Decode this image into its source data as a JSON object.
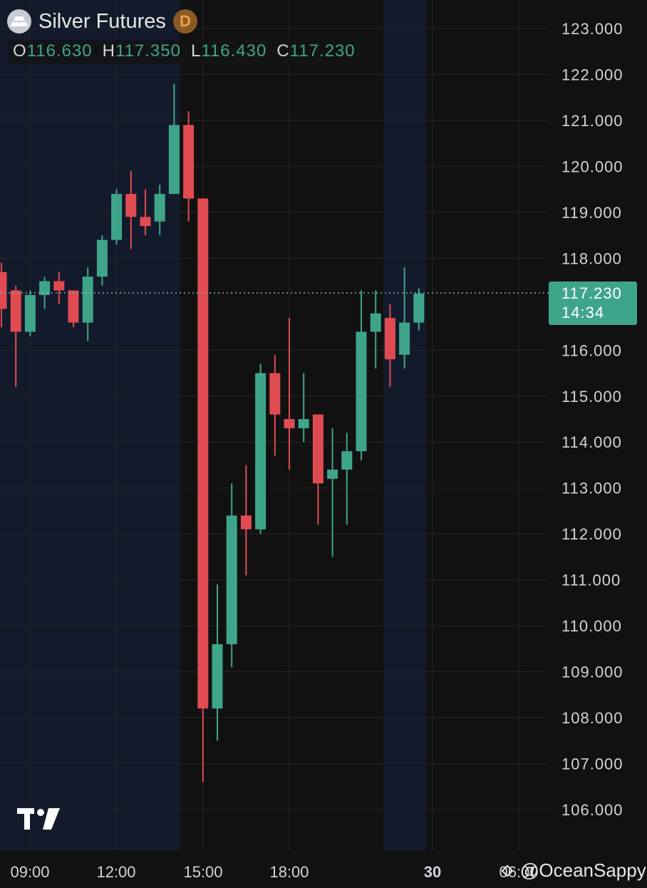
{
  "symbol": {
    "name": "Silver Futures",
    "badge": "D",
    "icon": "silver-bars-icon"
  },
  "ohlc": {
    "o_label": "O",
    "o_value": "116.630",
    "h_label": "H",
    "h_value": "117.350",
    "l_label": "L",
    "l_value": "116.430",
    "c_label": "C",
    "c_value": "117.230"
  },
  "last_price": {
    "price": "117.230",
    "countdown": "14:34"
  },
  "watermark": "@OceanSappy",
  "colors": {
    "background": "#111111",
    "session_highlight": "#131a2b",
    "up": "#3fa58a",
    "down": "#e04b52",
    "grid": "#262626",
    "last_price_tag": "#3fa58a"
  },
  "chart_data": {
    "type": "candlestick",
    "title": "Silver Futures",
    "x_tick_labels": [
      "09:00",
      "12:00",
      "15:00",
      "18:00",
      "30",
      "06:00"
    ],
    "y_tick_labels": [
      "123.000",
      "122.000",
      "121.000",
      "120.000",
      "119.000",
      "118.000",
      "116.000",
      "115.000",
      "114.000",
      "113.000",
      "112.000",
      "111.000",
      "110.000",
      "109.000",
      "108.000",
      "107.000",
      "106.000"
    ],
    "ylim": [
      105.0,
      124.0
    ],
    "grid": true,
    "last_price": 117.23,
    "candles": [
      {
        "o": 117.7,
        "h": 117.9,
        "l": 116.5,
        "c": 116.9
      },
      {
        "o": 117.3,
        "h": 117.4,
        "l": 115.2,
        "c": 116.4
      },
      {
        "o": 116.4,
        "h": 117.3,
        "l": 116.3,
        "c": 117.2
      },
      {
        "o": 117.2,
        "h": 117.6,
        "l": 116.9,
        "c": 117.5
      },
      {
        "o": 117.5,
        "h": 117.7,
        "l": 117.0,
        "c": 117.3
      },
      {
        "o": 117.3,
        "h": 117.3,
        "l": 116.5,
        "c": 116.6
      },
      {
        "o": 116.6,
        "h": 117.8,
        "l": 116.2,
        "c": 117.6
      },
      {
        "o": 117.6,
        "h": 118.5,
        "l": 117.4,
        "c": 118.4
      },
      {
        "o": 118.4,
        "h": 119.5,
        "l": 118.3,
        "c": 119.4
      },
      {
        "o": 119.4,
        "h": 119.9,
        "l": 118.2,
        "c": 118.9
      },
      {
        "o": 118.9,
        "h": 119.5,
        "l": 118.5,
        "c": 118.7
      },
      {
        "o": 118.8,
        "h": 119.6,
        "l": 118.5,
        "c": 119.4
      },
      {
        "o": 119.4,
        "h": 121.8,
        "l": 119.4,
        "c": 120.9
      },
      {
        "o": 120.9,
        "h": 121.2,
        "l": 118.8,
        "c": 119.3
      },
      {
        "o": 119.3,
        "h": 119.3,
        "l": 106.6,
        "c": 108.2
      },
      {
        "o": 108.2,
        "h": 110.9,
        "l": 107.5,
        "c": 109.6
      },
      {
        "o": 109.6,
        "h": 113.1,
        "l": 109.1,
        "c": 112.4
      },
      {
        "o": 112.4,
        "h": 113.5,
        "l": 111.1,
        "c": 112.1
      },
      {
        "o": 112.1,
        "h": 115.7,
        "l": 112.0,
        "c": 115.5
      },
      {
        "o": 115.5,
        "h": 115.9,
        "l": 113.7,
        "c": 114.6
      },
      {
        "o": 114.5,
        "h": 116.7,
        "l": 113.4,
        "c": 114.3
      },
      {
        "o": 114.3,
        "h": 115.5,
        "l": 114.0,
        "c": 114.5
      },
      {
        "o": 114.6,
        "h": 114.6,
        "l": 112.2,
        "c": 113.1
      },
      {
        "o": 113.2,
        "h": 114.3,
        "l": 111.5,
        "c": 113.4
      },
      {
        "o": 113.4,
        "h": 114.2,
        "l": 112.2,
        "c": 113.8
      },
      {
        "o": 113.8,
        "h": 117.3,
        "l": 113.6,
        "c": 116.4
      },
      {
        "o": 116.4,
        "h": 117.3,
        "l": 115.6,
        "c": 116.8
      },
      {
        "o": 116.7,
        "h": 117.0,
        "l": 115.2,
        "c": 115.8
      },
      {
        "o": 115.9,
        "h": 117.8,
        "l": 115.6,
        "c": 116.6
      },
      {
        "o": 116.6,
        "h": 117.35,
        "l": 116.43,
        "c": 117.23
      }
    ]
  }
}
